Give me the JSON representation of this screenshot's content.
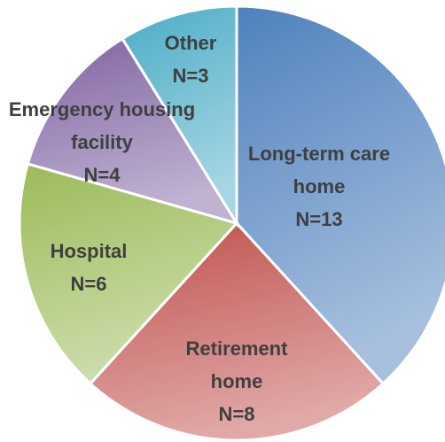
{
  "chart_data": {
    "type": "pie",
    "categories": [
      "Long-term care home",
      "Retirement home",
      "Hospital",
      "Emergency housing facility",
      "Other"
    ],
    "values": [
      13,
      8,
      6,
      4,
      3
    ],
    "value_labels": [
      "N=13",
      "N=8",
      "N=6",
      "N=4",
      "N=3"
    ],
    "colors": [
      "#4f81bd",
      "#c0504d",
      "#9bbb59",
      "#8064a2",
      "#4bacc6"
    ]
  }
}
